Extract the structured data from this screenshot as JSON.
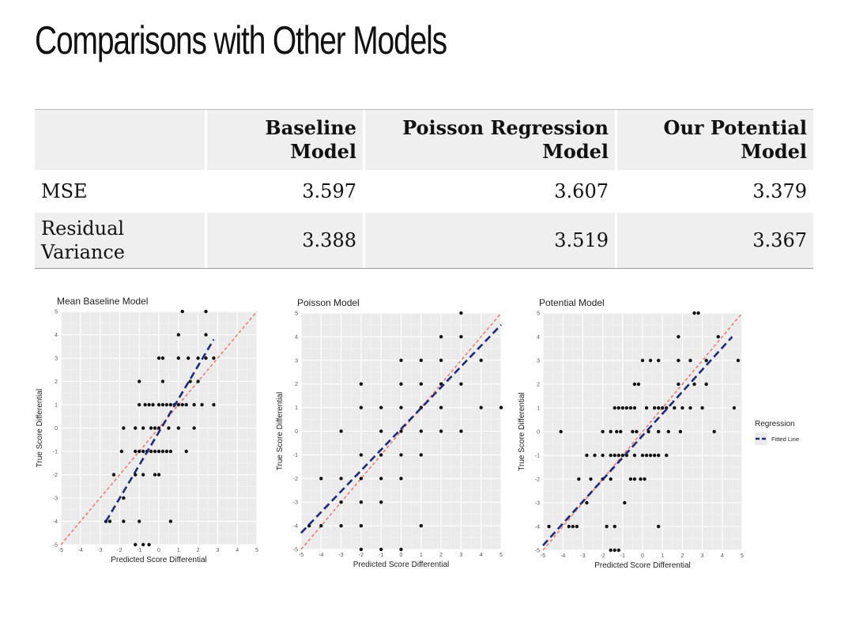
{
  "slide": {
    "title": "Comparisons with Other Models"
  },
  "table": {
    "headers": [
      "",
      "Baseline Model",
      "Poisson Regression Model",
      "Our Potential Model"
    ],
    "header_lines": [
      [
        ""
      ],
      [
        "Baseline",
        "Model"
      ],
      [
        "Poisson Regression",
        "Model"
      ],
      [
        "Our Potential",
        "Model"
      ]
    ],
    "rows": [
      {
        "label": "MSE",
        "values": [
          "3.597",
          "3.607",
          "3.379"
        ]
      },
      {
        "label_lines": [
          "Residual",
          "Variance"
        ],
        "label": "Residual Variance",
        "values": [
          "3.388",
          "3.519",
          "3.367"
        ]
      }
    ]
  },
  "chart_data": [
    {
      "type": "scatter",
      "title": "Mean Baseline Model",
      "xlabel": "Predicted Score Differential",
      "ylabel": "True Score Differential",
      "xlim": [
        -5,
        5
      ],
      "ylim": [
        -5,
        5
      ],
      "ticks": [
        -5,
        -4,
        -3,
        -2,
        -1,
        0,
        1,
        2,
        3,
        4,
        5
      ],
      "grid": true,
      "points": [
        [
          1.2,
          5
        ],
        [
          2.4,
          5
        ],
        [
          1.0,
          4
        ],
        [
          2.4,
          4
        ],
        [
          0.0,
          3
        ],
        [
          0.2,
          3
        ],
        [
          1.0,
          3
        ],
        [
          1.5,
          3
        ],
        [
          2.0,
          3
        ],
        [
          2.4,
          3
        ],
        [
          2.8,
          3
        ],
        [
          -1.0,
          2
        ],
        [
          0.2,
          2
        ],
        [
          1.6,
          2
        ],
        [
          2.0,
          2
        ],
        [
          -1.0,
          1
        ],
        [
          -0.7,
          1
        ],
        [
          -0.5,
          1
        ],
        [
          -0.3,
          1
        ],
        [
          0.0,
          1
        ],
        [
          0.2,
          1
        ],
        [
          0.4,
          1
        ],
        [
          0.6,
          1
        ],
        [
          0.8,
          1
        ],
        [
          1.0,
          1
        ],
        [
          1.2,
          1
        ],
        [
          1.4,
          1
        ],
        [
          1.8,
          1
        ],
        [
          2.2,
          1
        ],
        [
          2.8,
          1
        ],
        [
          -1.8,
          0
        ],
        [
          -1.2,
          0
        ],
        [
          -0.8,
          0
        ],
        [
          -0.4,
          0
        ],
        [
          -0.2,
          0
        ],
        [
          0.0,
          0
        ],
        [
          0.5,
          0
        ],
        [
          1.0,
          0
        ],
        [
          1.8,
          0
        ],
        [
          -1.9,
          -1
        ],
        [
          -1.2,
          -1
        ],
        [
          -1.0,
          -1
        ],
        [
          -0.8,
          -1
        ],
        [
          -0.6,
          -1
        ],
        [
          -0.4,
          -1
        ],
        [
          -0.2,
          -1
        ],
        [
          0.0,
          -1
        ],
        [
          0.2,
          -1
        ],
        [
          0.4,
          -1
        ],
        [
          0.6,
          -1
        ],
        [
          1.4,
          -1
        ],
        [
          -1.2,
          -2
        ],
        [
          -0.8,
          -2
        ],
        [
          -0.2,
          -2
        ],
        [
          0.0,
          -2
        ],
        [
          -2.3,
          -2
        ],
        [
          -1.8,
          -3
        ],
        [
          -2.7,
          -4
        ],
        [
          -2.5,
          -4
        ],
        [
          -1.8,
          -4
        ],
        [
          -1.0,
          -4
        ],
        [
          0.6,
          -4
        ],
        [
          -1.2,
          -5
        ],
        [
          -0.8,
          -5
        ],
        [
          -0.5,
          -5
        ]
      ],
      "fitted_line": {
        "x": [
          -2.7,
          2.8
        ],
        "y": [
          -4.0,
          3.8
        ]
      },
      "reference_line": {
        "x": [
          -5,
          5
        ],
        "y": [
          -5,
          5
        ]
      }
    },
    {
      "type": "scatter",
      "title": "Poisson Model",
      "xlabel": "Predicted Score Differential",
      "ylabel": "True Score Differential",
      "xlim": [
        -5,
        5
      ],
      "ylim": [
        -5,
        5
      ],
      "ticks": [
        -5,
        -4,
        -3,
        -2,
        -1,
        0,
        1,
        2,
        3,
        4,
        5
      ],
      "grid": true,
      "points": [
        [
          3,
          5
        ],
        [
          2,
          4
        ],
        [
          3,
          4
        ],
        [
          0,
          3
        ],
        [
          1,
          3
        ],
        [
          2,
          3
        ],
        [
          4,
          3
        ],
        [
          -2,
          2
        ],
        [
          0,
          2
        ],
        [
          1,
          2
        ],
        [
          2,
          2
        ],
        [
          3,
          2
        ],
        [
          -2,
          1
        ],
        [
          -1,
          1
        ],
        [
          0,
          1
        ],
        [
          1,
          1
        ],
        [
          2,
          1
        ],
        [
          4,
          1
        ],
        [
          5,
          1
        ],
        [
          -3,
          0
        ],
        [
          -1,
          0
        ],
        [
          0,
          0
        ],
        [
          1,
          0
        ],
        [
          2,
          0
        ],
        [
          3,
          0
        ],
        [
          -2,
          -1
        ],
        [
          -1,
          -1
        ],
        [
          0,
          -1
        ],
        [
          1,
          -1
        ],
        [
          -4,
          -2
        ],
        [
          -3,
          -2
        ],
        [
          -2,
          -2
        ],
        [
          -1,
          -2
        ],
        [
          0,
          -2
        ],
        [
          -3,
          -3
        ],
        [
          -2,
          -3
        ],
        [
          -1,
          -3
        ],
        [
          -4.6,
          -4
        ],
        [
          -4,
          -4
        ],
        [
          -3,
          -4
        ],
        [
          -2,
          -4
        ],
        [
          1,
          -4
        ],
        [
          -2,
          -5
        ],
        [
          -1,
          -5
        ],
        [
          0,
          -5
        ]
      ],
      "fitted_line": {
        "x": [
          -5,
          5
        ],
        "y": [
          -4.3,
          4.5
        ]
      },
      "reference_line": {
        "x": [
          -5,
          5
        ],
        "y": [
          -5,
          5
        ]
      }
    },
    {
      "type": "scatter",
      "title": "Potential Model",
      "xlabel": "Predicted Score Differential",
      "ylabel": "True Score Differential",
      "xlim": [
        -5,
        5
      ],
      "ylim": [
        -5,
        5
      ],
      "ticks": [
        -5,
        -4,
        -3,
        -2,
        -1,
        0,
        1,
        2,
        3,
        4,
        5
      ],
      "grid": true,
      "points": [
        [
          2.6,
          5
        ],
        [
          2.8,
          5
        ],
        [
          1.8,
          4
        ],
        [
          3.8,
          4
        ],
        [
          0.0,
          3
        ],
        [
          0.4,
          3
        ],
        [
          0.8,
          3
        ],
        [
          1.8,
          3
        ],
        [
          2.4,
          3
        ],
        [
          3.2,
          3
        ],
        [
          4.8,
          3
        ],
        [
          -0.4,
          2
        ],
        [
          -0.2,
          2
        ],
        [
          1.8,
          2
        ],
        [
          2.6,
          2
        ],
        [
          3.2,
          2
        ],
        [
          -1.4,
          1
        ],
        [
          -1.2,
          1
        ],
        [
          -1.0,
          1
        ],
        [
          -0.8,
          1
        ],
        [
          -0.6,
          1
        ],
        [
          -0.4,
          1
        ],
        [
          0.2,
          1
        ],
        [
          0.6,
          1
        ],
        [
          0.8,
          1
        ],
        [
          1.0,
          1
        ],
        [
          1.2,
          1
        ],
        [
          1.6,
          1
        ],
        [
          2.0,
          1
        ],
        [
          2.4,
          1
        ],
        [
          3.0,
          1
        ],
        [
          4.6,
          1
        ],
        [
          -4.1,
          0
        ],
        [
          -2.0,
          0
        ],
        [
          -1.6,
          0
        ],
        [
          -1.3,
          0
        ],
        [
          -1.1,
          0
        ],
        [
          -0.5,
          0
        ],
        [
          -0.3,
          0
        ],
        [
          0.3,
          0
        ],
        [
          0.8,
          0
        ],
        [
          1.3,
          0
        ],
        [
          1.9,
          0
        ],
        [
          3.6,
          0
        ],
        [
          -2.8,
          -1
        ],
        [
          -2.4,
          -1
        ],
        [
          -2.0,
          -1
        ],
        [
          -1.6,
          -1
        ],
        [
          -1.4,
          -1
        ],
        [
          -1.2,
          -1
        ],
        [
          -1.0,
          -1
        ],
        [
          -0.8,
          -1
        ],
        [
          -0.4,
          -1
        ],
        [
          0.0,
          -1
        ],
        [
          0.2,
          -1
        ],
        [
          0.4,
          -1
        ],
        [
          0.6,
          -1
        ],
        [
          0.8,
          -1
        ],
        [
          1.2,
          -1
        ],
        [
          -3.2,
          -2
        ],
        [
          -2.6,
          -2
        ],
        [
          -2.0,
          -2
        ],
        [
          -1.6,
          -2
        ],
        [
          -0.6,
          -2
        ],
        [
          -0.4,
          -2
        ],
        [
          -0.1,
          -2
        ],
        [
          0.1,
          -2
        ],
        [
          -2.8,
          -3
        ],
        [
          -0.9,
          -3
        ],
        [
          -4.7,
          -4
        ],
        [
          -3.7,
          -4
        ],
        [
          -3.5,
          -4
        ],
        [
          -3.3,
          -4
        ],
        [
          -1.8,
          -4
        ],
        [
          -1.4,
          -4
        ],
        [
          0.8,
          -4
        ],
        [
          -1.6,
          -5
        ],
        [
          -1.4,
          -5
        ],
        [
          -1.2,
          -5
        ]
      ],
      "fitted_line": {
        "x": [
          -5,
          4.5
        ],
        "y": [
          -4.8,
          4.0
        ]
      },
      "reference_line": {
        "x": [
          -5,
          5
        ],
        "y": [
          -5,
          5
        ]
      },
      "legend": {
        "title": "Regression",
        "entries": [
          "Fitted Line"
        ],
        "placement": "right"
      }
    }
  ],
  "colors": {
    "panel": "#ebebeb",
    "grid_major": "#ffffff",
    "grid_minor": "#f5f5f5",
    "point": "#111111",
    "fitted_line": "#1f2a7a",
    "reference_line": "#e9786e",
    "table_cell": "#efefef"
  }
}
